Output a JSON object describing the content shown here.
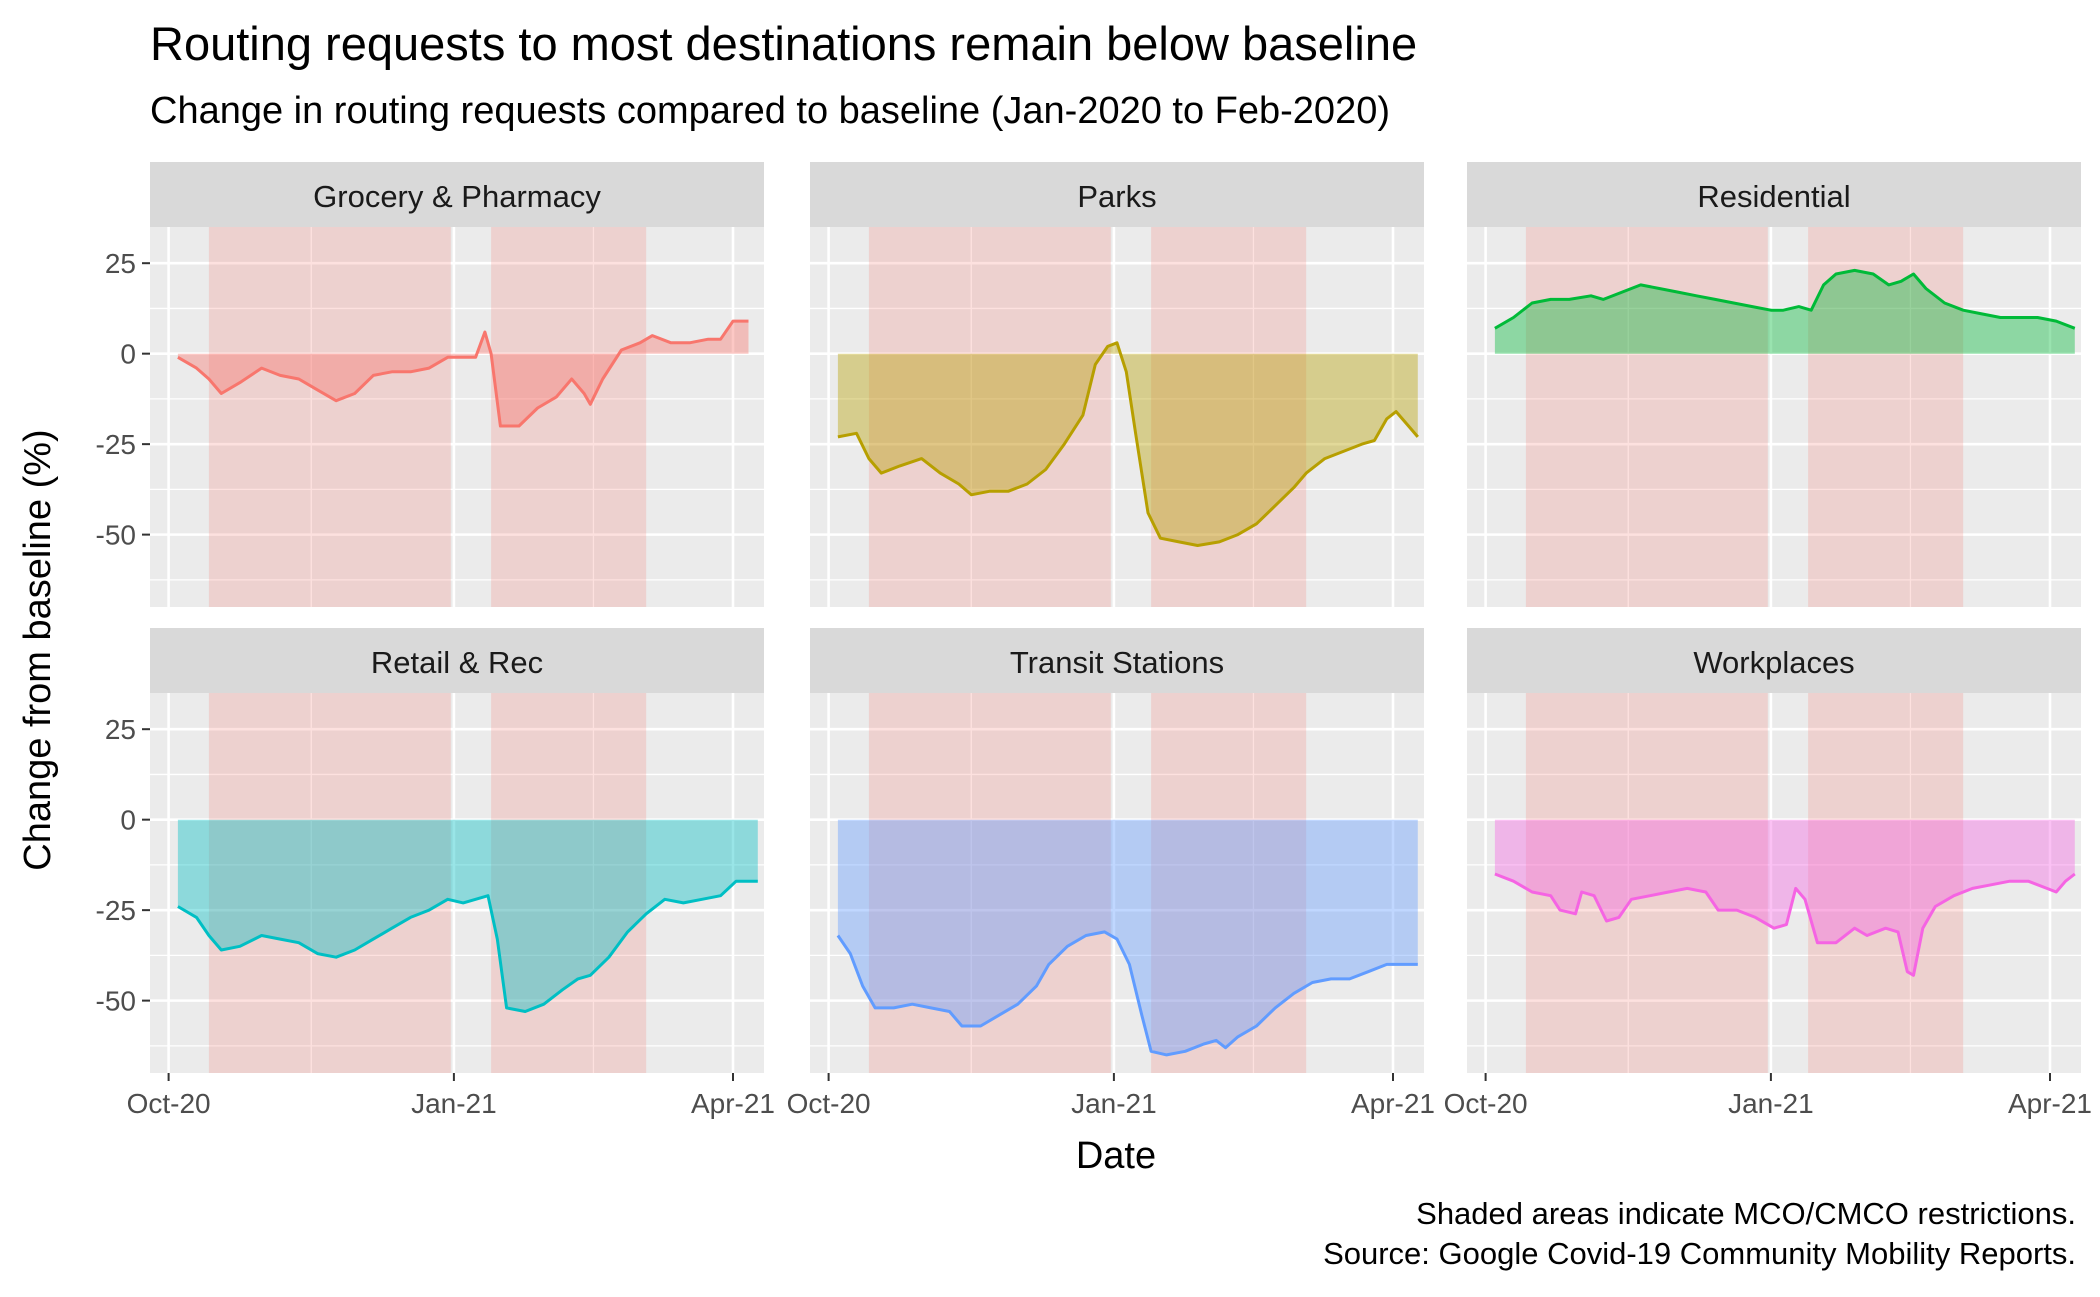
{
  "title": "Routing requests to most destinations remain below baseline",
  "subtitle": "Change in routing requests compared to baseline (Jan-2020 to Feb-2020)",
  "caption_line1": "Shaded areas indicate MCO/CMCO restrictions.",
  "caption_line2": "Source: Google Covid-19 Community Mobility Reports.",
  "chart_data": {
    "type": "area",
    "xlabel": "Date",
    "ylabel": "Change from baseline (%)",
    "x_ticks": [
      "Oct-20",
      "Jan-21",
      "Apr-21"
    ],
    "x_tick_dates": [
      "2020-10-01",
      "2021-01-01",
      "2021-04-01"
    ],
    "y_ticks": [
      25,
      0,
      -25,
      -50
    ],
    "ylim": [
      -70,
      35
    ],
    "xlim": [
      "2020-09-25",
      "2021-04-11"
    ],
    "grid": true,
    "shaded_periods": [
      {
        "start": "2020-10-14",
        "end": "2020-12-31",
        "label": "MCO/CMCO"
      },
      {
        "start": "2021-01-13",
        "end": "2021-03-04",
        "label": "MCO/CMCO"
      }
    ],
    "series": [
      {
        "name": "Grocery & Pharmacy",
        "color": "#F8766D",
        "points": [
          [
            "2020-10-04",
            -1
          ],
          [
            "2020-10-10",
            -4
          ],
          [
            "2020-10-14",
            -7
          ],
          [
            "2020-10-18",
            -11
          ],
          [
            "2020-10-24",
            -8
          ],
          [
            "2020-10-31",
            -4
          ],
          [
            "2020-11-06",
            -6
          ],
          [
            "2020-11-12",
            -7
          ],
          [
            "2020-11-18",
            -10
          ],
          [
            "2020-11-24",
            -13
          ],
          [
            "2020-11-30",
            -11
          ],
          [
            "2020-12-06",
            -6
          ],
          [
            "2020-12-12",
            -5
          ],
          [
            "2020-12-18",
            -5
          ],
          [
            "2020-12-24",
            -4
          ],
          [
            "2020-12-30",
            -1
          ],
          [
            "2021-01-04",
            -1
          ],
          [
            "2021-01-08",
            -1
          ],
          [
            "2021-01-11",
            6
          ],
          [
            "2021-01-13",
            0
          ],
          [
            "2021-01-16",
            -20
          ],
          [
            "2021-01-22",
            -20
          ],
          [
            "2021-01-28",
            -15
          ],
          [
            "2021-02-03",
            -12
          ],
          [
            "2021-02-08",
            -7
          ],
          [
            "2021-02-12",
            -11
          ],
          [
            "2021-02-14",
            -14
          ],
          [
            "2021-02-18",
            -7
          ],
          [
            "2021-02-24",
            1
          ],
          [
            "2021-03-02",
            3
          ],
          [
            "2021-03-06",
            5
          ],
          [
            "2021-03-12",
            3
          ],
          [
            "2021-03-18",
            3
          ],
          [
            "2021-03-24",
            4
          ],
          [
            "2021-03-28",
            4
          ],
          [
            "2021-04-01",
            9
          ],
          [
            "2021-04-06",
            9
          ]
        ]
      },
      {
        "name": "Parks",
        "color": "#B79F00",
        "points": [
          [
            "2020-10-04",
            -23
          ],
          [
            "2020-10-10",
            -22
          ],
          [
            "2020-10-14",
            -29
          ],
          [
            "2020-10-18",
            -33
          ],
          [
            "2020-10-24",
            -31
          ],
          [
            "2020-10-31",
            -29
          ],
          [
            "2020-11-06",
            -33
          ],
          [
            "2020-11-12",
            -36
          ],
          [
            "2020-11-16",
            -39
          ],
          [
            "2020-11-22",
            -38
          ],
          [
            "2020-11-28",
            -38
          ],
          [
            "2020-12-04",
            -36
          ],
          [
            "2020-12-10",
            -32
          ],
          [
            "2020-12-16",
            -25
          ],
          [
            "2020-12-22",
            -17
          ],
          [
            "2020-12-26",
            -3
          ],
          [
            "2020-12-30",
            2
          ],
          [
            "2021-01-02",
            3
          ],
          [
            "2021-01-05",
            -5
          ],
          [
            "2021-01-08",
            -22
          ],
          [
            "2021-01-12",
            -44
          ],
          [
            "2021-01-16",
            -51
          ],
          [
            "2021-01-22",
            -52
          ],
          [
            "2021-01-28",
            -53
          ],
          [
            "2021-02-04",
            -52
          ],
          [
            "2021-02-10",
            -50
          ],
          [
            "2021-02-16",
            -47
          ],
          [
            "2021-02-22",
            -42
          ],
          [
            "2021-02-28",
            -37
          ],
          [
            "2021-03-04",
            -33
          ],
          [
            "2021-03-10",
            -29
          ],
          [
            "2021-03-16",
            -27
          ],
          [
            "2021-03-22",
            -25
          ],
          [
            "2021-03-26",
            -24
          ],
          [
            "2021-03-30",
            -18
          ],
          [
            "2021-04-02",
            -16
          ],
          [
            "2021-04-06",
            -20
          ],
          [
            "2021-04-09",
            -23
          ]
        ]
      },
      {
        "name": "Residential",
        "color": "#00BA38",
        "points": [
          [
            "2020-10-04",
            7
          ],
          [
            "2020-10-10",
            10
          ],
          [
            "2020-10-16",
            14
          ],
          [
            "2020-10-22",
            15
          ],
          [
            "2020-10-28",
            15
          ],
          [
            "2020-11-04",
            16
          ],
          [
            "2020-11-08",
            15
          ],
          [
            "2020-11-14",
            17
          ],
          [
            "2020-11-20",
            19
          ],
          [
            "2020-11-26",
            18
          ],
          [
            "2020-12-02",
            17
          ],
          [
            "2020-12-08",
            16
          ],
          [
            "2020-12-14",
            15
          ],
          [
            "2020-12-20",
            14
          ],
          [
            "2020-12-26",
            13
          ],
          [
            "2021-01-01",
            12
          ],
          [
            "2021-01-05",
            12
          ],
          [
            "2021-01-10",
            13
          ],
          [
            "2021-01-14",
            12
          ],
          [
            "2021-01-18",
            19
          ],
          [
            "2021-01-22",
            22
          ],
          [
            "2021-01-28",
            23
          ],
          [
            "2021-02-03",
            22
          ],
          [
            "2021-02-08",
            19
          ],
          [
            "2021-02-12",
            20
          ],
          [
            "2021-02-16",
            22
          ],
          [
            "2021-02-20",
            18
          ],
          [
            "2021-02-26",
            14
          ],
          [
            "2021-03-04",
            12
          ],
          [
            "2021-03-10",
            11
          ],
          [
            "2021-03-16",
            10
          ],
          [
            "2021-03-22",
            10
          ],
          [
            "2021-03-28",
            10
          ],
          [
            "2021-04-03",
            9
          ],
          [
            "2021-04-09",
            7
          ]
        ]
      },
      {
        "name": "Retail & Rec",
        "color": "#00BFC4",
        "points": [
          [
            "2020-10-04",
            -24
          ],
          [
            "2020-10-10",
            -27
          ],
          [
            "2020-10-14",
            -32
          ],
          [
            "2020-10-18",
            -36
          ],
          [
            "2020-10-24",
            -35
          ],
          [
            "2020-10-31",
            -32
          ],
          [
            "2020-11-06",
            -33
          ],
          [
            "2020-11-12",
            -34
          ],
          [
            "2020-11-18",
            -37
          ],
          [
            "2020-11-24",
            -38
          ],
          [
            "2020-11-30",
            -36
          ],
          [
            "2020-12-06",
            -33
          ],
          [
            "2020-12-12",
            -30
          ],
          [
            "2020-12-18",
            -27
          ],
          [
            "2020-12-24",
            -25
          ],
          [
            "2020-12-30",
            -22
          ],
          [
            "2021-01-04",
            -23
          ],
          [
            "2021-01-08",
            -22
          ],
          [
            "2021-01-12",
            -21
          ],
          [
            "2021-01-15",
            -33
          ],
          [
            "2021-01-18",
            -52
          ],
          [
            "2021-01-24",
            -53
          ],
          [
            "2021-01-30",
            -51
          ],
          [
            "2021-02-05",
            -47
          ],
          [
            "2021-02-10",
            -44
          ],
          [
            "2021-02-14",
            -43
          ],
          [
            "2021-02-20",
            -38
          ],
          [
            "2021-02-26",
            -31
          ],
          [
            "2021-03-04",
            -26
          ],
          [
            "2021-03-10",
            -22
          ],
          [
            "2021-03-16",
            -23
          ],
          [
            "2021-03-22",
            -22
          ],
          [
            "2021-03-28",
            -21
          ],
          [
            "2021-04-02",
            -17
          ],
          [
            "2021-04-06",
            -17
          ],
          [
            "2021-04-09",
            -17
          ]
        ]
      },
      {
        "name": "Transit Stations",
        "color": "#619CFF",
        "points": [
          [
            "2020-10-04",
            -32
          ],
          [
            "2020-10-08",
            -37
          ],
          [
            "2020-10-12",
            -46
          ],
          [
            "2020-10-16",
            -52
          ],
          [
            "2020-10-22",
            -52
          ],
          [
            "2020-10-28",
            -51
          ],
          [
            "2020-11-03",
            -52
          ],
          [
            "2020-11-09",
            -53
          ],
          [
            "2020-11-13",
            -57
          ],
          [
            "2020-11-19",
            -57
          ],
          [
            "2020-11-25",
            -54
          ],
          [
            "2020-12-01",
            -51
          ],
          [
            "2020-12-07",
            -46
          ],
          [
            "2020-12-11",
            -40
          ],
          [
            "2020-12-17",
            -35
          ],
          [
            "2020-12-23",
            -32
          ],
          [
            "2020-12-29",
            -31
          ],
          [
            "2021-01-02",
            -33
          ],
          [
            "2021-01-06",
            -40
          ],
          [
            "2021-01-10",
            -54
          ],
          [
            "2021-01-13",
            -64
          ],
          [
            "2021-01-18",
            -65
          ],
          [
            "2021-01-24",
            -64
          ],
          [
            "2021-01-30",
            -62
          ],
          [
            "2021-02-03",
            -61
          ],
          [
            "2021-02-06",
            -63
          ],
          [
            "2021-02-10",
            -60
          ],
          [
            "2021-02-16",
            -57
          ],
          [
            "2021-02-22",
            -52
          ],
          [
            "2021-02-28",
            -48
          ],
          [
            "2021-03-06",
            -45
          ],
          [
            "2021-03-12",
            -44
          ],
          [
            "2021-03-18",
            -44
          ],
          [
            "2021-03-24",
            -42
          ],
          [
            "2021-03-30",
            -40
          ],
          [
            "2021-04-09",
            -40
          ]
        ]
      },
      {
        "name": "Workplaces",
        "color": "#F564E3",
        "points": [
          [
            "2020-10-04",
            -15
          ],
          [
            "2020-10-10",
            -17
          ],
          [
            "2020-10-16",
            -20
          ],
          [
            "2020-10-22",
            -21
          ],
          [
            "2020-10-25",
            -25
          ],
          [
            "2020-10-30",
            -26
          ],
          [
            "2020-11-01",
            -20
          ],
          [
            "2020-11-05",
            -21
          ],
          [
            "2020-11-09",
            -28
          ],
          [
            "2020-11-13",
            -27
          ],
          [
            "2020-11-17",
            -22
          ],
          [
            "2020-11-23",
            -21
          ],
          [
            "2020-11-29",
            -20
          ],
          [
            "2020-12-05",
            -19
          ],
          [
            "2020-12-11",
            -20
          ],
          [
            "2020-12-15",
            -25
          ],
          [
            "2020-12-21",
            -25
          ],
          [
            "2020-12-27",
            -27
          ],
          [
            "2021-01-02",
            -30
          ],
          [
            "2021-01-06",
            -29
          ],
          [
            "2021-01-09",
            -19
          ],
          [
            "2021-01-12",
            -22
          ],
          [
            "2021-01-16",
            -34
          ],
          [
            "2021-01-22",
            -34
          ],
          [
            "2021-01-28",
            -30
          ],
          [
            "2021-02-01",
            -32
          ],
          [
            "2021-02-07",
            -30
          ],
          [
            "2021-02-11",
            -31
          ],
          [
            "2021-02-14",
            -42
          ],
          [
            "2021-02-16",
            -43
          ],
          [
            "2021-02-19",
            -30
          ],
          [
            "2021-02-23",
            -24
          ],
          [
            "2021-03-01",
            -21
          ],
          [
            "2021-03-07",
            -19
          ],
          [
            "2021-03-13",
            -18
          ],
          [
            "2021-03-19",
            -17
          ],
          [
            "2021-03-25",
            -17
          ],
          [
            "2021-03-31",
            -19
          ],
          [
            "2021-04-03",
            -20
          ],
          [
            "2021-04-06",
            -17
          ],
          [
            "2021-04-09",
            -15
          ]
        ]
      }
    ]
  }
}
